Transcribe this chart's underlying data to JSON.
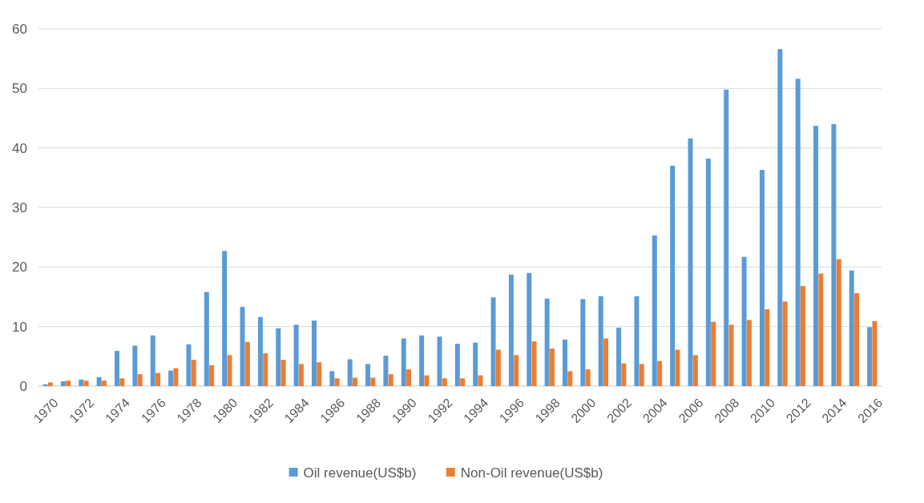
{
  "chart_data": {
    "type": "bar",
    "categories": [
      "1970",
      null,
      "1972",
      null,
      "1974",
      null,
      "1976",
      null,
      "1978",
      null,
      "1980",
      null,
      "1982",
      null,
      "1984",
      null,
      "1986",
      null,
      "1988",
      null,
      "1990",
      null,
      "1992",
      null,
      "1994",
      null,
      "1996",
      null,
      "1998",
      null,
      "2000",
      null,
      "2002",
      null,
      "2004",
      null,
      "2006",
      null,
      "2008",
      null,
      "2010",
      null,
      "2012",
      null,
      "2014",
      null,
      "2016"
    ],
    "series": [
      {
        "name": "Oil revenue(US$b)",
        "color": "#5b9bd5",
        "values": [
          0.3,
          0.8,
          1.1,
          1.5,
          5.9,
          6.8,
          8.5,
          2.6,
          7.0,
          15.8,
          22.7,
          13.3,
          11.6,
          9.7,
          10.3,
          11.0,
          2.5,
          4.5,
          3.7,
          5.1,
          8.0,
          8.5,
          8.3,
          7.1,
          7.3,
          14.9,
          18.7,
          19.0,
          14.7,
          7.8,
          14.6,
          15.1,
          9.8,
          15.1,
          25.3,
          37.0,
          41.6,
          38.2,
          49.8,
          21.7,
          36.3,
          56.6,
          51.6,
          43.7,
          44.0,
          19.4,
          9.9
        ]
      },
      {
        "name": "Non-Oil revenue(US$b)",
        "color": "#ed7d31",
        "values": [
          0.6,
          0.9,
          0.9,
          0.9,
          1.3,
          2.0,
          2.2,
          3.0,
          4.4,
          3.5,
          5.2,
          7.4,
          5.5,
          4.4,
          3.7,
          4.0,
          1.3,
          1.4,
          1.4,
          2.0,
          2.8,
          1.8,
          1.3,
          1.3,
          1.8,
          6.1,
          5.2,
          7.5,
          6.3,
          2.5,
          2.8,
          8.0,
          3.8,
          3.7,
          4.2,
          6.1,
          5.2,
          10.8,
          10.3,
          11.1,
          12.9,
          14.2,
          16.8,
          18.9,
          21.3,
          15.6,
          10.9
        ]
      }
    ],
    "ylim": [
      0,
      60
    ],
    "yticks": [
      0,
      10,
      20,
      30,
      40,
      50,
      60
    ],
    "grid": "y",
    "legend": "bottom"
  }
}
